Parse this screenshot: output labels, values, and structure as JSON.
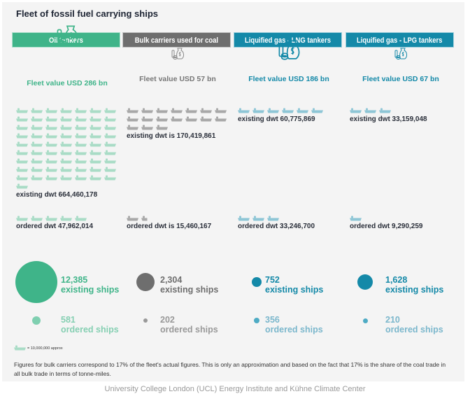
{
  "title": "Fleet of fossil fuel carrying ships",
  "chart_data": {
    "type": "pictogram",
    "unit_icon": "ship-icon",
    "unit_value_label": "= 10,000,000 approx",
    "categories": [
      {
        "name": "Oil tankers",
        "color": "#3fb489",
        "light": "#a9dcc6",
        "fleet_value": "Fleet value USD 286 bn",
        "fleet_value_bn": 286,
        "existing_dwt_label": "existing dwt 664,460,178",
        "existing_dwt": 664460178,
        "existing_icons": 64,
        "ordered_dwt_label": "ordered dwt 47,962,014",
        "ordered_dwt": 47962014,
        "ordered_icons": 5,
        "existing_ships": "12,385",
        "ordered_ships": "581",
        "existing_label": "existing ships",
        "ordered_label": "ordered ships"
      },
      {
        "name": "Bulk carriers used for coal",
        "color": "#6e6e6e",
        "light": "#a8a8a8",
        "fleet_value": "Fleet value USD 57 bn",
        "fleet_value_bn": 57,
        "existing_dwt_label": "existing dwt is 170,419,861",
        "existing_dwt": 170419861,
        "existing_icons": 17,
        "ordered_dwt_label": "ordered dwt is 15,460,167",
        "ordered_dwt": 15460167,
        "ordered_icons": 1.5,
        "existing_ships": "2,304",
        "ordered_ships": "202",
        "existing_label": "existing ships",
        "ordered_label": "ordered ships"
      },
      {
        "name": "Liquified gas - LNG tankers",
        "color": "#1489a8",
        "light": "#8ec6d6",
        "fleet_value": "Fleet value USD 186 bn",
        "fleet_value_bn": 186,
        "existing_dwt_label": "existing dwt 60,775,869",
        "existing_dwt": 60775869,
        "existing_icons": 6,
        "ordered_dwt_label": "ordered dwt 33,246,700",
        "ordered_dwt": 33246700,
        "ordered_icons": 3,
        "existing_ships": "752",
        "ordered_ships": "356",
        "existing_label": "existing ships",
        "ordered_label": "ordered ships"
      },
      {
        "name": "Liquified gas - LPG tankers",
        "color": "#1489a8",
        "light": "#8ec6d6",
        "fleet_value": "Fleet value USD 67 bn",
        "fleet_value_bn": 67,
        "existing_dwt_label": "existing dwt 33,159,048",
        "existing_dwt": 33159048,
        "existing_icons": 3,
        "ordered_dwt_label": "ordered dwt 9,290,259",
        "ordered_dwt": 9290259,
        "ordered_icons": 1,
        "existing_ships": "1,628",
        "ordered_ships": "210",
        "existing_label": "existing ships",
        "ordered_label": "ordered ships"
      }
    ]
  },
  "footnote": "Figures for bulk carriers correspond to 17% of the fleet's actual figures. This is only an  approximation and based on the fact that 17% is the share of the coal trade in all bulk trade in terms of  tonne-miles.",
  "source": "University College London (UCL) Energy Institute and Kühne Climate Center"
}
